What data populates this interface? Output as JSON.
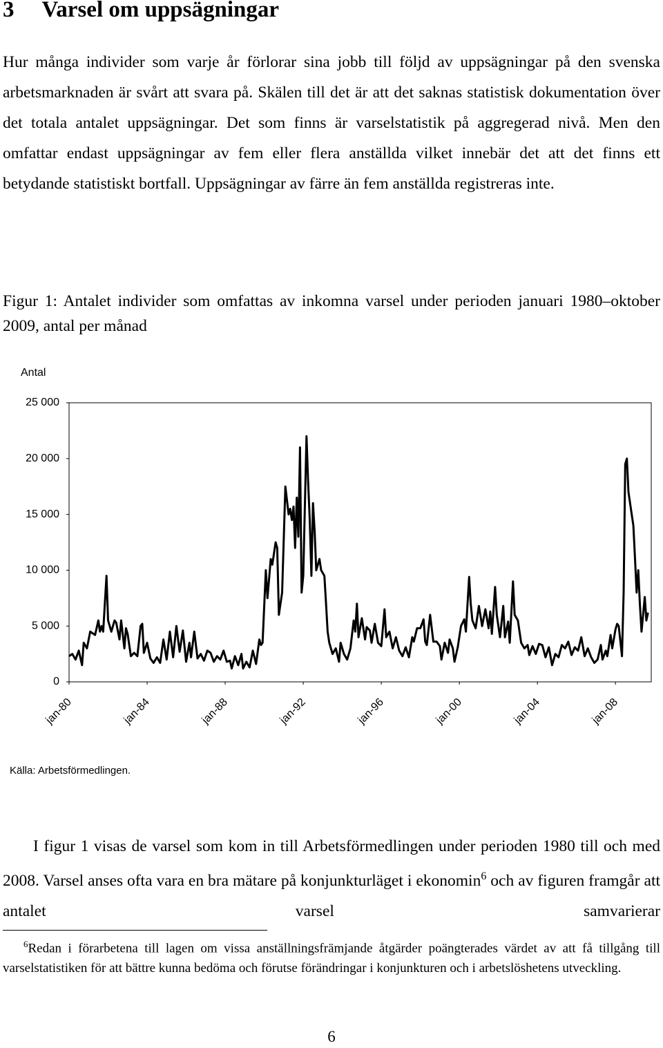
{
  "section": {
    "number": "3",
    "title": "Varsel om uppsägningar"
  },
  "paragraph_1": "Hur många individer som varje år förlorar sina jobb till följd av uppsägningar på den svenska arbetsmarknaden är svårt att svara på. Skälen till det är att det saknas statistisk dokumentation över det totala antalet uppsägningar. Det som finns är varselstatistik på aggregerad nivå. Men den omfattar endast uppsägningar av fem eller flera anställda vilket innebär det att det finns ett betydande statistiskt bortfall. Uppsägningar av färre än fem anställda registreras inte.",
  "figure_caption": "Figur 1: Antalet individer som omfattas av inkomna varsel under perioden januari 1980–oktober 2009, antal per månad",
  "chart_data": {
    "type": "line",
    "y_label": "Antal",
    "source": "Källa: Arbetsförmedlingen.",
    "color": "#000000",
    "xlim": [
      0,
      358
    ],
    "xticks": [
      {
        "value": 0,
        "label": "jan-80"
      },
      {
        "value": 48,
        "label": "jan-84"
      },
      {
        "value": 96,
        "label": "jan-88"
      },
      {
        "value": 144,
        "label": "jan-92"
      },
      {
        "value": 192,
        "label": "jan-96"
      },
      {
        "value": 240,
        "label": "jan-00"
      },
      {
        "value": 288,
        "label": "jan-04"
      },
      {
        "value": 336,
        "label": "jan-08"
      }
    ],
    "ylim": [
      0,
      25000
    ],
    "yticks": [
      0,
      {
        "value": 5000,
        "label": "5 000"
      },
      {
        "value": 10000,
        "label": "10 000"
      },
      {
        "value": 15000,
        "label": "15 000"
      },
      {
        "value": 20000,
        "label": "20 000"
      },
      {
        "value": 25000,
        "label": "25 000"
      }
    ],
    "x": [
      0,
      2,
      4,
      6,
      8,
      9,
      11,
      13,
      16,
      18,
      19,
      20,
      21,
      23,
      24,
      26,
      28,
      29,
      31,
      32,
      34,
      35,
      36,
      38,
      40,
      42,
      44,
      45,
      46,
      48,
      50,
      52,
      54,
      56,
      58,
      60,
      62,
      64,
      66,
      68,
      70,
      72,
      74,
      75,
      77,
      79,
      81,
      83,
      85,
      87,
      89,
      91,
      93,
      95,
      97,
      99,
      100,
      102,
      104,
      106,
      107,
      109,
      111,
      113,
      115,
      117,
      118,
      119,
      121,
      122,
      124,
      125,
      127,
      128,
      129,
      131,
      133,
      135,
      136,
      137,
      138,
      139,
      140,
      141,
      142,
      143,
      144,
      146,
      147,
      148,
      149,
      150,
      151,
      152,
      154,
      155,
      157,
      158,
      159,
      160,
      162,
      164,
      166,
      167,
      169,
      171,
      173,
      175,
      176,
      177,
      178,
      180,
      182,
      183,
      185,
      186,
      188,
      190,
      192,
      194,
      195,
      197,
      199,
      201,
      203,
      205,
      207,
      209,
      211,
      212,
      214,
      216,
      218,
      219,
      220,
      222,
      224,
      226,
      228,
      229,
      231,
      233,
      234,
      236,
      237,
      239,
      241,
      243,
      244,
      246,
      247,
      248,
      250,
      252,
      254,
      256,
      258,
      259,
      260,
      262,
      263,
      265,
      267,
      268,
      270,
      271,
      273,
      274,
      276,
      278,
      280,
      282,
      283,
      285,
      287,
      289,
      291,
      293,
      295,
      297,
      299,
      301,
      303,
      305,
      307,
      309,
      311,
      313,
      315,
      317,
      319,
      321,
      323,
      325,
      327,
      328,
      330,
      331,
      333,
      334,
      336,
      337,
      338,
      340,
      341,
      342,
      343,
      344,
      346,
      347,
      348,
      349,
      350,
      351,
      352,
      353,
      354,
      355,
      356
    ],
    "values": [
      2300,
      2500,
      2000,
      2800,
      1500,
      3500,
      3000,
      4500,
      4200,
      5500,
      4500,
      5000,
      4500,
      9500,
      5500,
      4500,
      5500,
      5300,
      3800,
      5500,
      3000,
      4800,
      4300,
      2300,
      2600,
      2300,
      5000,
      5200,
      2600,
      3500,
      2100,
      1700,
      2200,
      1700,
      3800,
      2000,
      4500,
      2200,
      5000,
      2700,
      4600,
      1800,
      3500,
      2200,
      4500,
      2100,
      2500,
      1900,
      2800,
      2600,
      1800,
      2300,
      2000,
      2800,
      1800,
      1900,
      1200,
      2300,
      1500,
      2500,
      1200,
      1800,
      1300,
      2800,
      1600,
      3800,
      3300,
      3500,
      10000,
      7500,
      11000,
      10500,
      12500,
      12000,
      6000,
      8000,
      17500,
      15000,
      15500,
      14500,
      15700,
      12000,
      16500,
      13000,
      21000,
      8000,
      9500,
      22000,
      18000,
      14500,
      9500,
      16000,
      13500,
      10000,
      11000,
      10000,
      9500,
      7000,
      4500,
      3500,
      2500,
      3000,
      1800,
      3500,
      2500,
      2000,
      3000,
      5500,
      4500,
      7000,
      4000,
      5700,
      3800,
      4900,
      4600,
      3500,
      5200,
      3500,
      3200,
      6500,
      4000,
      4500,
      3000,
      4000,
      2800,
      2300,
      3100,
      2200,
      4000,
      3600,
      4800,
      4800,
      5600,
      3600,
      3300,
      6000,
      3600,
      3600,
      3200,
      2000,
      3500,
      2600,
      3800,
      3000,
      1800,
      3100,
      5000,
      5600,
      4500,
      9400,
      7000,
      5500,
      4800,
      6800,
      5000,
      6500,
      4800,
      6300,
      4300,
      8500,
      6000,
      4000,
      6800,
      4000,
      5400,
      3500,
      9000,
      6000,
      5500,
      3500,
      3000,
      3300,
      2400,
      3200,
      2500,
      3400,
      3300,
      2200,
      3100,
      1500,
      2500,
      2200,
      3300,
      3000,
      3600,
      2400,
      3100,
      2800,
      4000,
      2300,
      3000,
      2200,
      1700,
      2000,
      3300,
      2000,
      2800,
      2300,
      4200,
      3000,
      4700,
      5200,
      5000,
      2300,
      8000,
      19500,
      20000,
      17000,
      15000,
      14000,
      11000,
      8000,
      10000,
      7000,
      4500,
      6000,
      7600,
      5500,
      6200
    ]
  },
  "paragraph_2": {
    "text_before": "I figur 1 visas de varsel som kom in till Arbetsförmedlingen under perioden 1980 till och med 2008. Varsel anses ofta vara en bra mätare på konjunkturläget i ekonomin",
    "footnote_ref": "6",
    "text_after": " och av figuren framgår att antalet varsel samvarierar"
  },
  "footnote": {
    "number": "6",
    "text": "Redan i förarbetena till lagen om vissa anställningsfrämjande åtgärder poängterades värdet av att få tillgång till varselstatistiken för att bättre kunna bedöma och förutse förändringar i konjunkturen och i arbetslöshetens utveckling."
  },
  "page_number": "6"
}
